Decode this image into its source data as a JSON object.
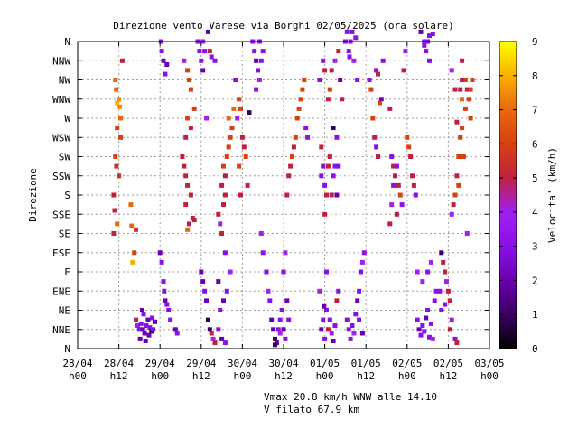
{
  "chart_data": {
    "type": "scatter",
    "title": "Direzione vento Varese via Borghi 02/05/2025 (ora solare)",
    "ylabel": "Direzione",
    "colorbar_label": "Velocita' (km/h)",
    "colorbar_ticks": [
      "0",
      "1",
      "2",
      "3",
      "4",
      "5",
      "6",
      "7",
      "8",
      "9"
    ],
    "colorbar_range": [
      0,
      9
    ],
    "y_categories": [
      "N",
      "NNE",
      "NE",
      "ENE",
      "E",
      "ESE",
      "SE",
      "SSE",
      "S",
      "SSW",
      "SW",
      "WSW",
      "W",
      "WNW",
      "NW",
      "NNW",
      "N"
    ],
    "x_range_hours": [
      0,
      120
    ],
    "x_ticks": [
      {
        "date": "28/04",
        "time": "h00"
      },
      {
        "date": "28/04",
        "time": "h12"
      },
      {
        "date": "29/04",
        "time": "h00"
      },
      {
        "date": "29/04",
        "time": "h12"
      },
      {
        "date": "30/04",
        "time": "h00"
      },
      {
        "date": "30/04",
        "time": "h12"
      },
      {
        "date": "01/05",
        "time": "h00"
      },
      {
        "date": "01/05",
        "time": "h12"
      },
      {
        "date": "02/05",
        "time": "h00"
      },
      {
        "date": "02/05",
        "time": "h12"
      },
      {
        "date": "03/05",
        "time": "h00"
      }
    ],
    "grid": true,
    "footer": [
      "Vmax 20.8 km/h WNW alle 14.10",
      "V filato 67.9 km"
    ],
    "colormap": [
      "#000000",
      "#3a0060",
      "#6a00b0",
      "#8a10e8",
      "#a020f0",
      "#c02040",
      "#d84010",
      "#e86810",
      "#f8b000",
      "#ffff00"
    ],
    "points": [
      [
        11.0,
        14.0,
        7
      ],
      [
        11.2,
        13.5,
        7
      ],
      [
        11.5,
        12.8,
        8
      ],
      [
        12.0,
        13.0,
        7.5
      ],
      [
        12.3,
        12.6,
        7.5
      ],
      [
        11.0,
        10.0,
        6
      ],
      [
        11.3,
        9.5,
        5.5
      ],
      [
        12.0,
        9.0,
        5.5
      ],
      [
        11.5,
        11.5,
        6
      ],
      [
        12.5,
        11.0,
        6
      ],
      [
        10.5,
        8.0,
        5
      ],
      [
        10.8,
        7.2,
        5
      ],
      [
        11.5,
        6.5,
        7
      ],
      [
        10.5,
        6.0,
        5
      ],
      [
        12.5,
        12.0,
        7
      ],
      [
        13.0,
        15.0,
        5
      ],
      [
        15.5,
        7.5,
        7
      ],
      [
        15.7,
        6.4,
        7
      ],
      [
        16.0,
        4.5,
        8
      ],
      [
        17.0,
        6.2,
        5.5
      ],
      [
        16.5,
        5.0,
        6
      ],
      [
        17.0,
        1.5,
        5
      ],
      [
        17.5,
        1.2,
        4
      ],
      [
        18.0,
        1.0,
        3
      ],
      [
        18.5,
        1.3,
        3
      ],
      [
        19.0,
        1.0,
        2
      ],
      [
        19.5,
        0.8,
        2
      ],
      [
        20.0,
        1.2,
        3
      ],
      [
        20.5,
        1.5,
        2
      ],
      [
        21.0,
        1.1,
        3
      ],
      [
        21.5,
        0.9,
        1
      ],
      [
        18.2,
        0.5,
        2
      ],
      [
        19.8,
        0.4,
        2
      ],
      [
        22.0,
        1.0,
        3
      ],
      [
        22.5,
        1.4,
        2
      ],
      [
        20.8,
        0.7,
        2
      ],
      [
        21.7,
        1.6,
        3
      ],
      [
        19.2,
        1.8,
        3
      ],
      [
        18.8,
        2.0,
        2
      ],
      [
        24.0,
        5.0,
        2
      ],
      [
        24.5,
        4.5,
        3
      ],
      [
        25.0,
        3.5,
        3
      ],
      [
        25.2,
        3.0,
        3
      ],
      [
        25.5,
        2.5,
        2
      ],
      [
        26.0,
        2.3,
        3
      ],
      [
        26.5,
        2.0,
        3
      ],
      [
        27.0,
        1.5,
        3
      ],
      [
        28.5,
        1.0,
        2
      ],
      [
        29.0,
        0.8,
        3
      ],
      [
        24.5,
        15.5,
        3
      ],
      [
        25.0,
        15.0,
        2
      ],
      [
        26.0,
        14.8,
        2
      ],
      [
        25.5,
        14.3,
        3
      ],
      [
        24.3,
        16.0,
        3
      ],
      [
        31.0,
        15.0,
        4
      ],
      [
        32.0,
        14.5,
        6
      ],
      [
        32.5,
        14.0,
        6
      ],
      [
        33.0,
        13.5,
        6
      ],
      [
        32.0,
        12.0,
        6
      ],
      [
        33.0,
        11.5,
        5
      ],
      [
        34.0,
        12.5,
        6
      ],
      [
        31.5,
        11.0,
        5
      ],
      [
        30.5,
        10.0,
        5
      ],
      [
        31.0,
        9.5,
        5
      ],
      [
        31.5,
        9.0,
        5
      ],
      [
        32.0,
        8.5,
        5
      ],
      [
        33.0,
        8.0,
        5
      ],
      [
        31.5,
        7.5,
        5
      ],
      [
        32.5,
        6.5,
        5
      ],
      [
        33.5,
        6.8,
        5
      ],
      [
        32.0,
        6.2,
        7
      ],
      [
        34.0,
        6.7,
        5
      ],
      [
        35.0,
        16.0,
        3
      ],
      [
        35.5,
        15.5,
        3
      ],
      [
        36.0,
        15.0,
        3
      ],
      [
        36.5,
        16.0,
        4
      ],
      [
        37.0,
        15.5,
        3
      ],
      [
        38.0,
        16.5,
        2
      ],
      [
        38.5,
        15.5,
        5
      ],
      [
        39.0,
        15.2,
        3
      ],
      [
        36.5,
        14.5,
        2
      ],
      [
        37.5,
        12.0,
        4
      ],
      [
        40.0,
        15.0,
        3
      ],
      [
        36.0,
        4.0,
        2
      ],
      [
        36.5,
        3.5,
        2
      ],
      [
        37.0,
        3.0,
        3
      ],
      [
        37.5,
        2.5,
        2
      ],
      [
        38.0,
        1.5,
        1
      ],
      [
        38.5,
        1.0,
        1
      ],
      [
        39.0,
        0.8,
        5
      ],
      [
        39.5,
        0.5,
        4
      ],
      [
        40.0,
        0.3,
        5
      ],
      [
        41.0,
        1.0,
        3
      ],
      [
        42.0,
        0.5,
        2
      ],
      [
        43.0,
        0.3,
        3
      ],
      [
        41.5,
        2.0,
        3
      ],
      [
        42.5,
        2.5,
        2
      ],
      [
        43.5,
        3.0,
        3
      ],
      [
        41.0,
        3.5,
        2
      ],
      [
        41.0,
        7.0,
        5
      ],
      [
        41.5,
        6.5,
        4
      ],
      [
        42.0,
        6.0,
        5
      ],
      [
        42.5,
        7.5,
        5
      ],
      [
        43.0,
        8.0,
        5
      ],
      [
        42.0,
        8.5,
        5
      ],
      [
        43.0,
        9.0,
        5
      ],
      [
        42.5,
        9.5,
        6
      ],
      [
        43.5,
        10.0,
        6
      ],
      [
        44.0,
        10.5,
        6
      ],
      [
        44.5,
        11.0,
        6
      ],
      [
        45.0,
        11.5,
        6
      ],
      [
        44.0,
        12.0,
        7
      ],
      [
        45.5,
        12.5,
        7
      ],
      [
        43.0,
        5.0,
        3
      ],
      [
        44.5,
        4.0,
        4
      ],
      [
        47.0,
        13.0,
        6
      ],
      [
        47.5,
        12.5,
        6
      ],
      [
        48.0,
        11.0,
        5
      ],
      [
        48.5,
        10.5,
        5
      ],
      [
        49.0,
        10.0,
        6
      ],
      [
        47.0,
        9.5,
        6
      ],
      [
        49.5,
        8.5,
        5
      ],
      [
        47.5,
        8.0,
        5
      ],
      [
        46.0,
        14.0,
        3
      ],
      [
        46.5,
        12.0,
        4
      ],
      [
        50.0,
        12.3,
        1
      ],
      [
        51.0,
        16.0,
        3
      ],
      [
        51.5,
        15.5,
        3
      ],
      [
        52.0,
        15.0,
        2
      ],
      [
        52.5,
        14.5,
        3
      ],
      [
        53.0,
        16.0,
        3
      ],
      [
        53.5,
        15.0,
        3
      ],
      [
        52.0,
        13.5,
        3
      ],
      [
        53.0,
        14.0,
        4
      ],
      [
        54.0,
        15.5,
        3
      ],
      [
        53.5,
        6.0,
        4
      ],
      [
        54.0,
        5.0,
        3
      ],
      [
        55.0,
        4.0,
        3
      ],
      [
        55.5,
        3.0,
        4
      ],
      [
        56.0,
        2.5,
        3
      ],
      [
        56.5,
        1.5,
        2
      ],
      [
        57.0,
        1.0,
        2
      ],
      [
        57.5,
        0.5,
        1
      ],
      [
        58.0,
        0.3,
        2
      ],
      [
        58.5,
        1.0,
        3
      ],
      [
        59.0,
        1.5,
        3
      ],
      [
        59.5,
        2.0,
        3
      ],
      [
        60.0,
        1.0,
        2
      ],
      [
        60.5,
        0.5,
        3
      ],
      [
        61.0,
        2.5,
        2
      ],
      [
        61.5,
        1.5,
        3
      ],
      [
        57.5,
        0.2,
        1
      ],
      [
        59.0,
        0.8,
        4
      ],
      [
        60.0,
        4.0,
        3
      ],
      [
        60.5,
        5.0,
        4
      ],
      [
        61.0,
        8.0,
        5
      ],
      [
        61.5,
        9.0,
        5
      ],
      [
        62.0,
        9.5,
        5
      ],
      [
        62.5,
        10.0,
        6
      ],
      [
        63.0,
        10.5,
        5
      ],
      [
        63.5,
        11.0,
        6
      ],
      [
        64.0,
        12.0,
        6
      ],
      [
        64.5,
        12.5,
        6
      ],
      [
        65.0,
        13.0,
        6
      ],
      [
        65.5,
        13.5,
        6
      ],
      [
        66.0,
        14.0,
        6
      ],
      [
        66.5,
        11.5,
        3
      ],
      [
        67.0,
        11.0,
        3
      ],
      [
        71.0,
        9.0,
        3
      ],
      [
        71.5,
        9.5,
        3
      ],
      [
        72.0,
        8.5,
        3
      ],
      [
        72.5,
        8.0,
        5
      ],
      [
        73.0,
        9.5,
        5
      ],
      [
        73.5,
        10.0,
        5
      ],
      [
        74.0,
        8.0,
        5
      ],
      [
        74.5,
        9.0,
        3
      ],
      [
        75.0,
        9.5,
        3
      ],
      [
        75.5,
        8.0,
        2
      ],
      [
        76.0,
        9.5,
        3
      ],
      [
        71.0,
        10.5,
        5
      ],
      [
        72.0,
        7.0,
        5
      ],
      [
        70.5,
        14.0,
        3
      ],
      [
        71.5,
        15.0,
        3
      ],
      [
        72.0,
        14.5,
        5
      ],
      [
        73.0,
        13.0,
        5
      ],
      [
        73.5,
        13.5,
        6
      ],
      [
        74.5,
        11.5,
        1
      ],
      [
        75.5,
        11.0,
        3
      ],
      [
        75.0,
        15.0,
        4
      ],
      [
        76.0,
        15.5,
        5
      ],
      [
        76.5,
        14.0,
        2
      ],
      [
        77.0,
        13.0,
        5
      ],
      [
        74.0,
        14.5,
        5
      ],
      [
        71.0,
        1.0,
        2
      ],
      [
        71.5,
        1.5,
        3
      ],
      [
        72.0,
        0.5,
        3
      ],
      [
        72.5,
        2.0,
        3
      ],
      [
        73.0,
        1.0,
        5
      ],
      [
        73.5,
        1.5,
        3
      ],
      [
        74.0,
        0.8,
        4
      ],
      [
        74.5,
        0.4,
        2
      ],
      [
        75.0,
        1.2,
        3
      ],
      [
        75.5,
        2.5,
        5
      ],
      [
        76.0,
        3.0,
        3
      ],
      [
        72.5,
        4.0,
        3
      ],
      [
        70.5,
        3.0,
        4
      ],
      [
        71.8,
        2.2,
        2
      ],
      [
        78.0,
        16.0,
        3
      ],
      [
        78.5,
        16.5,
        3
      ],
      [
        79.0,
        15.5,
        3
      ],
      [
        79.5,
        16.0,
        3
      ],
      [
        80.0,
        16.5,
        3
      ],
      [
        80.5,
        15.0,
        4
      ],
      [
        81.0,
        16.2,
        3
      ],
      [
        79.2,
        15.2,
        3
      ],
      [
        81.5,
        14.0,
        3
      ],
      [
        78.5,
        1.5,
        3
      ],
      [
        79.0,
        1.0,
        3
      ],
      [
        79.5,
        0.5,
        3
      ],
      [
        80.0,
        1.2,
        3
      ],
      [
        80.5,
        0.8,
        4
      ],
      [
        81.0,
        1.8,
        3
      ],
      [
        81.5,
        2.5,
        2
      ],
      [
        82.0,
        3.0,
        3
      ],
      [
        82.5,
        4.0,
        3
      ],
      [
        83.0,
        4.5,
        4
      ],
      [
        83.5,
        5.0,
        3
      ],
      [
        82.0,
        1.5,
        3
      ],
      [
        83.0,
        0.8,
        2
      ],
      [
        85.0,
        14.0,
        3
      ],
      [
        85.5,
        13.5,
        6
      ],
      [
        86.0,
        12.0,
        6
      ],
      [
        87.0,
        14.5,
        3
      ],
      [
        87.5,
        14.3,
        5
      ],
      [
        88.5,
        13.0,
        2
      ],
      [
        89.0,
        15.0,
        3
      ],
      [
        88.0,
        12.8,
        6
      ],
      [
        86.5,
        11.0,
        5
      ],
      [
        87.0,
        10.5,
        3
      ],
      [
        87.5,
        10.0,
        5
      ],
      [
        91.0,
        12.5,
        5
      ],
      [
        91.5,
        10.0,
        3
      ],
      [
        92.0,
        9.5,
        5
      ],
      [
        92.5,
        9.0,
        5
      ],
      [
        93.0,
        9.5,
        3
      ],
      [
        93.5,
        8.5,
        5
      ],
      [
        94.0,
        8.0,
        6
      ],
      [
        94.5,
        7.5,
        3
      ],
      [
        92.0,
        8.5,
        3
      ],
      [
        93.0,
        7.0,
        5
      ],
      [
        91.0,
        6.5,
        5
      ],
      [
        91.5,
        7.5,
        4
      ],
      [
        95.0,
        14.5,
        5
      ],
      [
        95.5,
        15.5,
        4
      ],
      [
        96.0,
        11.0,
        6
      ],
      [
        96.5,
        10.5,
        6
      ],
      [
        97.0,
        10.0,
        5
      ],
      [
        97.5,
        9.0,
        5
      ],
      [
        98.0,
        8.5,
        5
      ],
      [
        98.5,
        8.0,
        3
      ],
      [
        99.0,
        4.0,
        4
      ],
      [
        100.5,
        3.5,
        4
      ],
      [
        100.0,
        16.5,
        2
      ],
      [
        101.0,
        16.0,
        3
      ],
      [
        101.5,
        15.5,
        3
      ],
      [
        102.0,
        16.0,
        3
      ],
      [
        102.5,
        16.3,
        3
      ],
      [
        101.0,
        15.8,
        3
      ],
      [
        103.5,
        16.4,
        3
      ],
      [
        102.5,
        15.0,
        3
      ],
      [
        99.0,
        1.5,
        3
      ],
      [
        99.5,
        1.0,
        2
      ],
      [
        100.0,
        0.7,
        3
      ],
      [
        100.5,
        1.2,
        3
      ],
      [
        101.0,
        0.9,
        3
      ],
      [
        101.5,
        1.6,
        2
      ],
      [
        102.0,
        2.0,
        3
      ],
      [
        102.5,
        0.6,
        3
      ],
      [
        103.0,
        1.3,
        3
      ],
      [
        103.5,
        0.5,
        4
      ],
      [
        104.0,
        2.5,
        3
      ],
      [
        104.5,
        3.0,
        3
      ],
      [
        102.0,
        4.0,
        3
      ],
      [
        103.0,
        4.5,
        4
      ],
      [
        106.0,
        5.0,
        1
      ],
      [
        106.5,
        4.5,
        5
      ],
      [
        107.0,
        4.0,
        5
      ],
      [
        107.5,
        3.5,
        4
      ],
      [
        108.0,
        3.0,
        5
      ],
      [
        108.5,
        2.5,
        5
      ],
      [
        109.0,
        1.5,
        4
      ],
      [
        110.0,
        0.5,
        3
      ],
      [
        110.5,
        0.3,
        5
      ],
      [
        106.0,
        2.0,
        3
      ],
      [
        105.5,
        3.0,
        3
      ],
      [
        107.0,
        2.3,
        3
      ],
      [
        108.5,
        1.0,
        5
      ],
      [
        109.0,
        7.0,
        4
      ],
      [
        109.5,
        7.5,
        5
      ],
      [
        110.0,
        8.0,
        6
      ],
      [
        110.5,
        9.0,
        5
      ],
      [
        111.0,
        10.0,
        6
      ],
      [
        111.5,
        11.0,
        6
      ],
      [
        112.0,
        11.5,
        6
      ],
      [
        110.5,
        11.8,
        5
      ],
      [
        111.0,
        8.5,
        6
      ],
      [
        112.5,
        10.0,
        6
      ],
      [
        113.0,
        12.5,
        6
      ],
      [
        113.5,
        13.5,
        5
      ],
      [
        112.0,
        13.0,
        7
      ],
      [
        113.0,
        14.0,
        6
      ],
      [
        114.0,
        13.0,
        6
      ],
      [
        112.0,
        15.0,
        5
      ],
      [
        114.5,
        13.5,
        6
      ],
      [
        115.0,
        14.0,
        6
      ],
      [
        114.5,
        12.0,
        6
      ],
      [
        113.5,
        6.0,
        4
      ],
      [
        112.0,
        14.0,
        5
      ],
      [
        111.5,
        13.5,
        5
      ],
      [
        109.0,
        14.5,
        4
      ],
      [
        110.0,
        13.5,
        5
      ]
    ]
  }
}
